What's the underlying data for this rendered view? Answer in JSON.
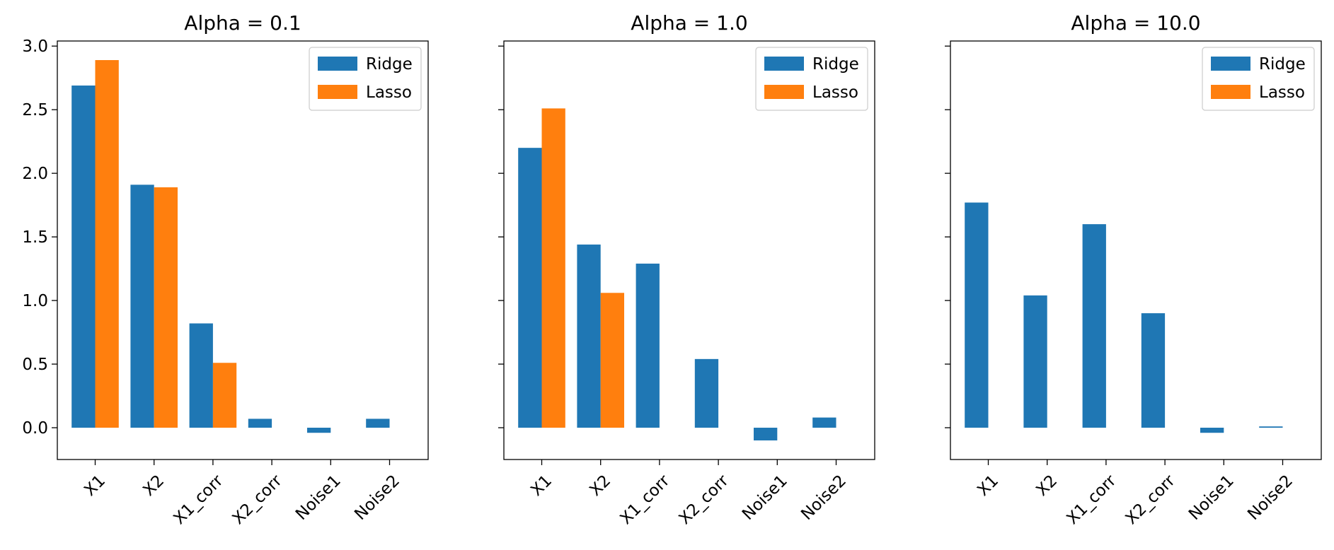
{
  "colors": {
    "ridge": "#1f77b4",
    "lasso": "#ff7f0e"
  },
  "legend": [
    "Ridge",
    "Lasso"
  ],
  "chart_data": [
    {
      "type": "bar",
      "title": "Alpha = 0.1",
      "categories": [
        "X1",
        "X2",
        "X1_corr",
        "X2_corr",
        "Noise1",
        "Noise2"
      ],
      "series": [
        {
          "name": "Ridge",
          "values": [
            2.69,
            1.91,
            0.82,
            0.07,
            -0.04,
            0.07
          ]
        },
        {
          "name": "Lasso",
          "values": [
            2.89,
            1.89,
            0.51,
            0.0,
            0.0,
            0.0
          ]
        }
      ],
      "yticks": [
        "0.0",
        "0.5",
        "1.0",
        "1.5",
        "2.0",
        "2.5",
        "3.0"
      ],
      "ylim": [
        -0.25,
        3.04
      ],
      "legend_position": "top-right",
      "grid": false
    },
    {
      "type": "bar",
      "title": "Alpha = 1.0",
      "categories": [
        "X1",
        "X2",
        "X1_corr",
        "X2_corr",
        "Noise1",
        "Noise2"
      ],
      "series": [
        {
          "name": "Ridge",
          "values": [
            2.2,
            1.44,
            1.29,
            0.54,
            -0.1,
            0.08
          ]
        },
        {
          "name": "Lasso",
          "values": [
            2.51,
            1.06,
            0.0,
            0.0,
            0.0,
            0.0
          ]
        }
      ],
      "ylim": [
        -0.25,
        3.04
      ],
      "legend_position": "top-right",
      "grid": false
    },
    {
      "type": "bar",
      "title": "Alpha = 10.0",
      "categories": [
        "X1",
        "X2",
        "X1_corr",
        "X2_corr",
        "Noise1",
        "Noise2"
      ],
      "series": [
        {
          "name": "Ridge",
          "values": [
            1.77,
            1.04,
            1.6,
            0.9,
            -0.04,
            0.01
          ]
        },
        {
          "name": "Lasso",
          "values": [
            0.0,
            0.0,
            0.0,
            0.0,
            0.0,
            0.0
          ]
        }
      ],
      "ylim": [
        -0.25,
        3.04
      ],
      "legend_position": "top-right",
      "grid": false
    }
  ]
}
